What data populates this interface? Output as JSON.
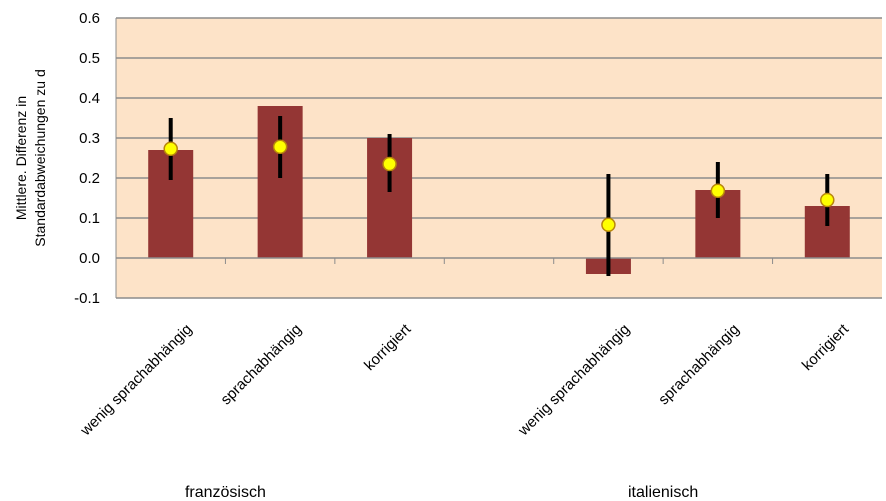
{
  "chart_data": {
    "type": "bar",
    "title": "",
    "ylabel_lines": [
      "Mittlere. Differenz in",
      "Standardabweichungen zu d"
    ],
    "ylim": [
      -0.1,
      0.6
    ],
    "yticks": [
      "-0.1",
      "0.0",
      "0.1",
      "0.2",
      "0.3",
      "0.4",
      "0.5",
      "0.6"
    ],
    "grid": true,
    "colors": {
      "plot_bg": "#fde3c8",
      "bar": "#943634",
      "marker_fill": "#ffff00",
      "marker_edge": "#b8860b",
      "errorbar": "#000000",
      "grid": "#8c8c8c"
    },
    "groups": [
      "französisch",
      "italienisch"
    ],
    "categories": [
      "wenig sprachabhängig",
      "sprachabhängig",
      "korrigiert",
      "",
      "wenig sprachabhängig",
      "sprachabhängig",
      "korrigiert"
    ],
    "bars": [
      0.27,
      0.38,
      0.3,
      null,
      -0.04,
      0.17,
      0.13
    ],
    "points": [
      0.273,
      0.278,
      0.235,
      null,
      0.083,
      0.168,
      0.145
    ],
    "err_low": [
      0.195,
      0.2,
      0.165,
      null,
      -0.045,
      0.1,
      0.08
    ],
    "err_high": [
      0.35,
      0.355,
      0.31,
      null,
      0.21,
      0.24,
      0.21
    ]
  }
}
